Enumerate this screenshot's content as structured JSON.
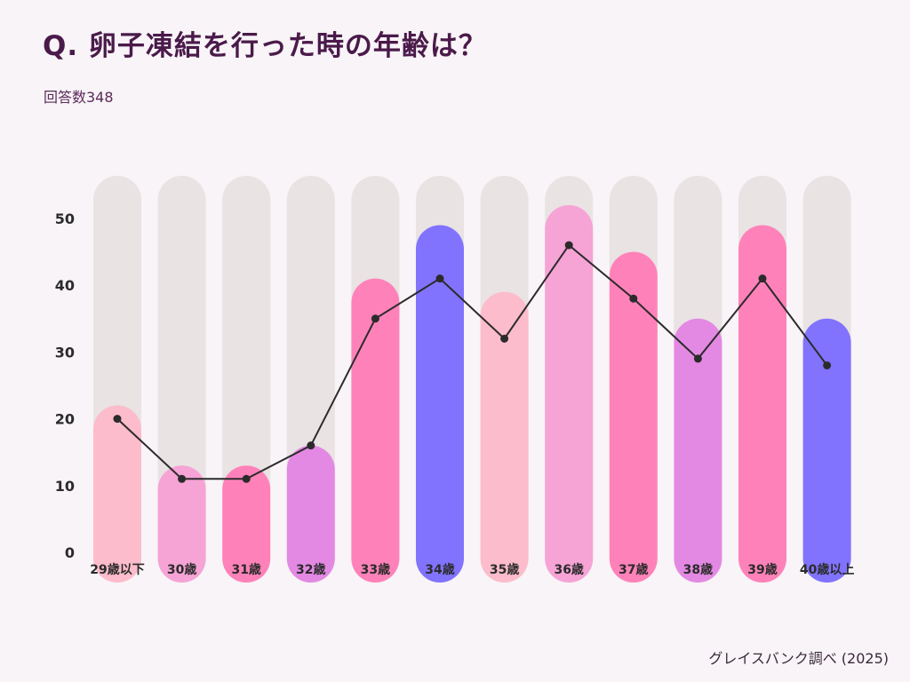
{
  "title": "Q. 卵子凍結を行った時の年齢は？",
  "subtitle": "回答数348",
  "source": "グレイスバンク調べ (2025)",
  "chart_data": {
    "type": "bar",
    "title": "Q. 卵子凍結を行った時の年齢は？",
    "xlabel": "",
    "ylabel": "",
    "ylim": [
      0,
      50
    ],
    "yticks": [
      0,
      10,
      20,
      30,
      40,
      50
    ],
    "grid": false,
    "categories": [
      "29歳以下",
      "30歳",
      "31歳",
      "32歳",
      "33歳",
      "34歳",
      "35歳",
      "36歳",
      "37歳",
      "38歳",
      "39歳",
      "40歳以上"
    ],
    "series": [
      {
        "type": "bar",
        "values": [
          22,
          13,
          13,
          16,
          41,
          49,
          39,
          52,
          45,
          35,
          49,
          35
        ],
        "colors": [
          "#fcbccc",
          "#f6a3d6",
          "#fe82b9",
          "#e389e3",
          "#fe82b9",
          "#8173fd",
          "#fcbccc",
          "#f6a3d6",
          "#fe82b9",
          "#e389e3",
          "#fe82b9",
          "#8173fd"
        ]
      },
      {
        "type": "line",
        "values": [
          20,
          11,
          11,
          16,
          35,
          41,
          32,
          46,
          38,
          29,
          41,
          28
        ],
        "color": "#2b2b2b"
      }
    ],
    "background_bar_color": "#e9e3e3"
  }
}
